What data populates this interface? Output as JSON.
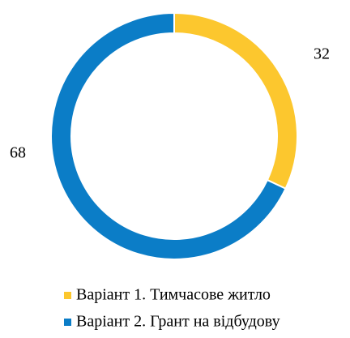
{
  "chart_data": {
    "type": "donut",
    "categories": [
      "Варіант 1. Тимчасове житло",
      "Варіант 2. Грант на відбудову"
    ],
    "values": [
      32,
      68
    ],
    "colors": [
      "#fcc72e",
      "#0b7dc7"
    ],
    "legend": "bottom"
  }
}
